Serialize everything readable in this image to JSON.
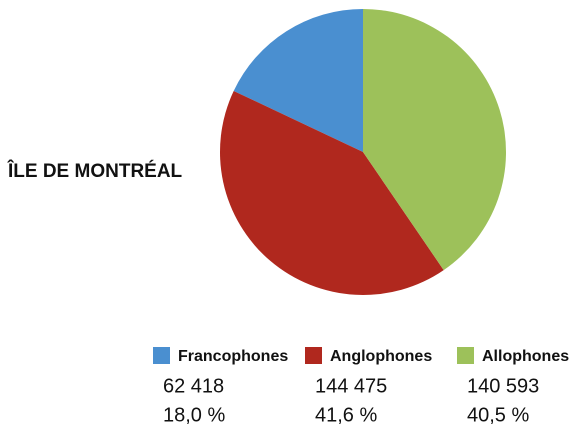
{
  "chart_data": {
    "type": "pie",
    "title": "ÎLE DE MONTRÉAL",
    "categories": [
      "Francophones",
      "Anglophones",
      "Allophones"
    ],
    "values": [
      18.0,
      41.6,
      40.5
    ],
    "value_labels": [
      "18,0 %",
      "41,6 %",
      "40,5 %"
    ],
    "counts": [
      62418,
      144475,
      140593
    ],
    "count_labels": [
      "62 418",
      "144 475",
      "140 593"
    ],
    "colors": [
      "#4a8fd0",
      "#b0281e",
      "#9dc15a"
    ]
  }
}
